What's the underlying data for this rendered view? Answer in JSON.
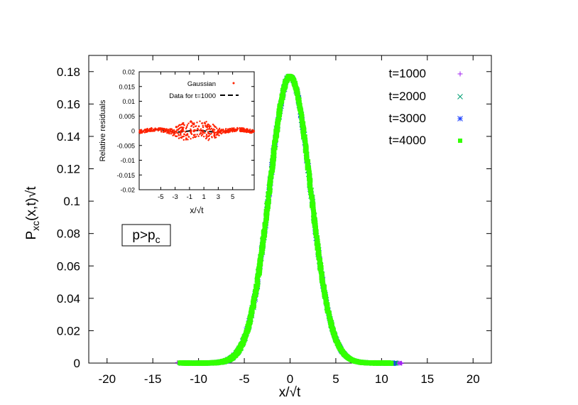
{
  "chart_data": [
    {
      "type": "scatter",
      "xlabel": "x/√t",
      "ylabel_main": "P",
      "ylabel_sub": "xc",
      "ylabel_rest": "(x,t)√t",
      "xlim": [
        -22,
        22
      ],
      "ylim": [
        0,
        0.19
      ],
      "xticks": [
        -20,
        -15,
        -10,
        -5,
        0,
        5,
        10,
        15,
        20
      ],
      "xtick_labels": [
        "-20",
        "-15",
        "-10",
        "-5",
        "0",
        "5",
        "10",
        "15",
        "20"
      ],
      "yticks": [
        0,
        0.02,
        0.04,
        0.06,
        0.08,
        0.1,
        0.12,
        0.14,
        0.16,
        0.18
      ],
      "ytick_labels": [
        "0",
        "0.02",
        "0.04",
        "0.06",
        "0.08",
        "0.1",
        "0.12",
        "0.14",
        "0.16",
        "0.18"
      ],
      "grid": false,
      "legend_position": "top-right",
      "annotation": {
        "main": "p>p",
        "sub": "c"
      },
      "curve": {
        "peak": 0.177,
        "sigma": 2.25
      },
      "series": [
        {
          "name": "t=1000",
          "marker": "plus",
          "color": "#a020f0",
          "x_range": [
            -12.2,
            12.2
          ]
        },
        {
          "name": "t=2000",
          "marker": "cross",
          "color": "#009e73",
          "x_range": [
            -12.0,
            11.6
          ]
        },
        {
          "name": "t=3000",
          "marker": "star",
          "color": "#1a3fff",
          "x_range": [
            -12.0,
            11.3
          ]
        },
        {
          "name": "t=4000",
          "marker": "square",
          "color": "#33ff00",
          "x_range": [
            -12.0,
            11.0
          ]
        }
      ]
    },
    {
      "type": "scatter",
      "xlabel": "x/√t",
      "ylabel": "Relative residuals",
      "xlim": [
        -8,
        8
      ],
      "ylim": [
        -0.02,
        0.02
      ],
      "xticks": [
        -5,
        -3,
        -1,
        1,
        3,
        5
      ],
      "xtick_labels": [
        "-5",
        "-3",
        "-1",
        "1",
        "3",
        "5"
      ],
      "yticks": [
        0.02,
        0.015,
        0.01,
        0.005,
        0,
        -0.005,
        -0.01,
        -0.015,
        -0.02
      ],
      "ytick_labels": [
        "0.02",
        "0.015",
        "0.01",
        "0.005",
        "0",
        "-0.005",
        "-0.01",
        "-0.015",
        "-0.02"
      ],
      "legend_position": "top-right",
      "series": [
        {
          "name": "Gaussian",
          "style": "points",
          "color": "#ff2200"
        },
        {
          "name": "Data for t=1000",
          "style": "dashed",
          "color": "#000000"
        }
      ]
    }
  ]
}
